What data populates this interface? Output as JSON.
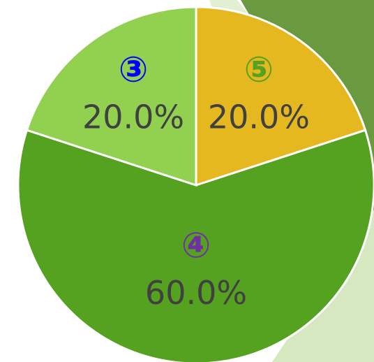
{
  "chart_data": {
    "type": "pie",
    "categories": [
      "⑤",
      "④",
      "③"
    ],
    "values": [
      20,
      60,
      20
    ],
    "value_labels": [
      "20.0%",
      "60.0%",
      "20.0%"
    ],
    "colors": [
      "#e6b820",
      "#55a120",
      "#92d050"
    ],
    "label_colors": [
      "#55a120",
      "#7030a0",
      "#0000ff"
    ]
  }
}
